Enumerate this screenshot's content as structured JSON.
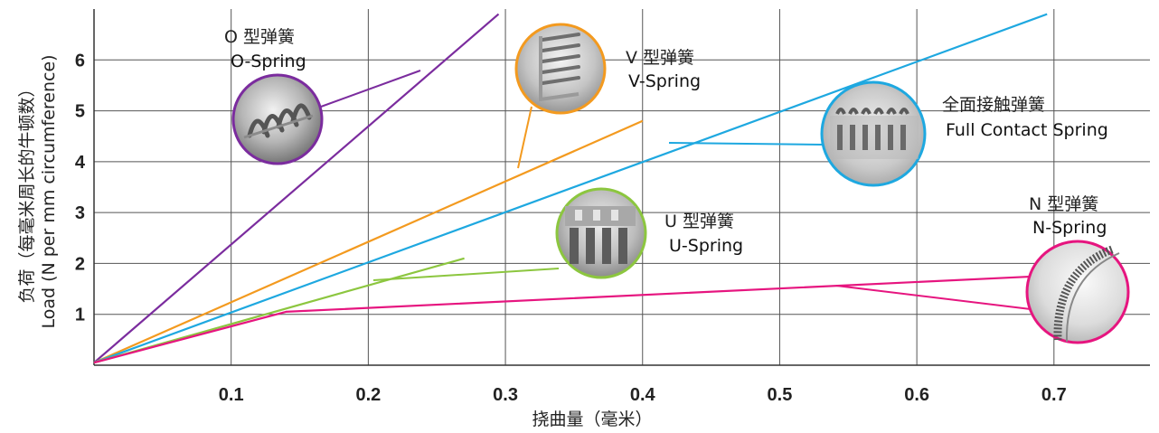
{
  "chart_data": {
    "type": "line",
    "title": "",
    "xlabel": "挠曲量（毫米）",
    "ylabel_line1": "负荷（每毫米周长的牛顿数）",
    "ylabel_line2": "Load (N per mm circumference)",
    "xlim": [
      0,
      0.77
    ],
    "ylim": [
      0,
      7
    ],
    "x_ticks": [
      0.1,
      0.2,
      0.3,
      0.4,
      0.5,
      0.6,
      0.7
    ],
    "x_tick_labels": [
      "0.1",
      "0.2",
      "0.3",
      "0.4",
      "0.5",
      "0.6",
      "0.7"
    ],
    "y_ticks": [
      1,
      2,
      3,
      4,
      5,
      6
    ],
    "y_tick_labels": [
      "1",
      "2",
      "3",
      "4",
      "5",
      "6"
    ],
    "grid": true,
    "series": [
      {
        "name_zh": "O 型弹簧",
        "name_en": "O-Spring",
        "color": "#7b2c9e",
        "points": [
          [
            0,
            0.05
          ],
          [
            0.295,
            6.9
          ]
        ]
      },
      {
        "name_zh": "V 型弹簧",
        "name_en": "V-Spring",
        "color": "#f39a1f",
        "points": [
          [
            0,
            0.05
          ],
          [
            0.4,
            4.8
          ]
        ]
      },
      {
        "name_zh": "全面接触弹簧",
        "name_en": "Full Contact Spring",
        "color": "#1ea8e0",
        "points": [
          [
            0,
            0.05
          ],
          [
            0.695,
            6.9
          ]
        ]
      },
      {
        "name_zh": "U 型弹簧",
        "name_en": "U-Spring",
        "color": "#8cc63f",
        "points": [
          [
            0,
            0.05
          ],
          [
            0.27,
            2.1
          ]
        ]
      },
      {
        "name_zh": "N 型弹簧",
        "name_en": "N-Spring",
        "color": "#e6157f",
        "points": [
          [
            0,
            0.05
          ],
          [
            0.14,
            1.05
          ],
          [
            0.69,
            1.75
          ]
        ]
      }
    ]
  }
}
